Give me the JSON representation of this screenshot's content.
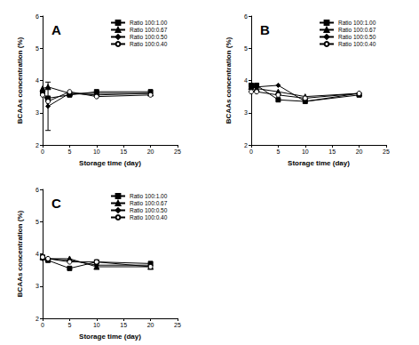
{
  "chart_data": [
    {
      "type": "line",
      "title": "A",
      "x_label": "Storage time (day)",
      "y_label": "BCAAs concentration (%)",
      "x": [
        0,
        1,
        5,
        10,
        20
      ],
      "xlim": [
        0,
        25
      ],
      "xticks": [
        0,
        5,
        10,
        15,
        20,
        25
      ],
      "ylim": [
        2,
        6
      ],
      "yticks": [
        2,
        3,
        4,
        5,
        6
      ],
      "grid": false,
      "legend": "upper right",
      "series": [
        {
          "name": "Ratio 100:1.00",
          "color": "#000000",
          "marker": "square",
          "values": [
            3.6,
            3.45,
            3.55,
            3.65,
            3.65
          ]
        },
        {
          "name": "Ratio 100:0.67",
          "color": "#000000",
          "marker": "triangle",
          "values": [
            3.75,
            3.8,
            3.6,
            3.6,
            3.6
          ]
        },
        {
          "name": "Ratio 100:0.50",
          "color": "#000000",
          "marker": "diamond",
          "values": [
            3.65,
            3.2,
            3.6,
            3.55,
            3.6
          ],
          "errors": [
            null,
            0.75,
            null,
            null,
            null
          ]
        },
        {
          "name": "Ratio 100:0.40",
          "color": "#000000",
          "marker": "open_circle",
          "values": [
            3.55,
            3.35,
            3.65,
            3.5,
            3.55
          ]
        }
      ]
    },
    {
      "type": "line",
      "title": "B",
      "x_label": "Storage time (day)",
      "y_label": "BCAAs concentration (%)",
      "x": [
        0,
        1,
        5,
        10,
        20
      ],
      "xlim": [
        0,
        25
      ],
      "xticks": [
        0,
        5,
        10,
        15,
        20,
        25
      ],
      "ylim": [
        2,
        6
      ],
      "yticks": [
        2,
        3,
        4,
        5,
        6
      ],
      "grid": false,
      "legend": "upper right",
      "series": [
        {
          "name": "Ratio 100:1.00",
          "color": "#000000",
          "marker": "square",
          "values": [
            3.85,
            3.85,
            3.4,
            3.35,
            3.55
          ]
        },
        {
          "name": "Ratio 100:0.67",
          "color": "#000000",
          "marker": "triangle",
          "values": [
            3.8,
            3.75,
            3.65,
            3.5,
            3.6
          ]
        },
        {
          "name": "Ratio 100:0.50",
          "color": "#000000",
          "marker": "diamond",
          "values": [
            3.75,
            3.8,
            3.85,
            3.35,
            3.6
          ]
        },
        {
          "name": "Ratio 100:0.40",
          "color": "#000000",
          "marker": "open_circle",
          "values": [
            3.65,
            3.65,
            3.55,
            3.45,
            3.6
          ]
        }
      ]
    },
    {
      "type": "line",
      "title": "C",
      "x_label": "Storage time (day)",
      "y_label": "BCAAs concentration (%)",
      "x": [
        0,
        1,
        5,
        10,
        20
      ],
      "xlim": [
        0,
        25
      ],
      "xticks": [
        0,
        5,
        10,
        15,
        20,
        25
      ],
      "ylim": [
        2,
        6
      ],
      "yticks": [
        2,
        3,
        4,
        5,
        6
      ],
      "grid": false,
      "legend": "upper right",
      "series": [
        {
          "name": "Ratio 100:1.00",
          "color": "#000000",
          "marker": "square",
          "values": [
            3.9,
            3.8,
            3.55,
            3.75,
            3.7
          ]
        },
        {
          "name": "Ratio 100:0.67",
          "color": "#000000",
          "marker": "triangle",
          "values": [
            3.9,
            3.85,
            3.85,
            3.6,
            3.6
          ]
        },
        {
          "name": "Ratio 100:0.50",
          "color": "#000000",
          "marker": "diamond",
          "values": [
            3.85,
            3.85,
            3.8,
            3.65,
            3.65
          ]
        },
        {
          "name": "Ratio 100:0.40",
          "color": "#000000",
          "marker": "open_circle",
          "values": [
            3.9,
            3.85,
            3.75,
            3.75,
            3.6
          ]
        }
      ]
    }
  ]
}
